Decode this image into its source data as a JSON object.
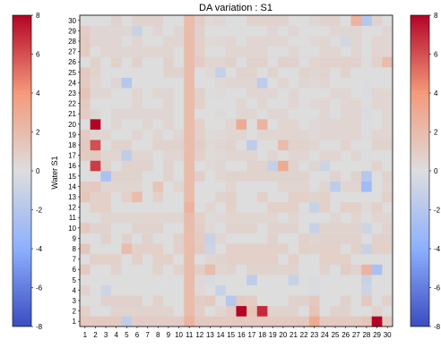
{
  "chart_data": {
    "type": "heatmap",
    "title": "DA variation : S1",
    "xlabel": "",
    "ylabel": "Water S1",
    "x_categories": [
      "1",
      "2",
      "3",
      "4",
      "5",
      "6",
      "7",
      "8",
      "9",
      "10",
      "11",
      "12",
      "13",
      "14",
      "15",
      "16",
      "17",
      "18",
      "19",
      "20",
      "21",
      "22",
      "23",
      "24",
      "25",
      "26",
      "27",
      "28",
      "29",
      "30"
    ],
    "y_categories": [
      "1",
      "2",
      "3",
      "4",
      "5",
      "6",
      "7",
      "8",
      "9",
      "10",
      "11",
      "12",
      "13",
      "14",
      "15",
      "16",
      "17",
      "18",
      "19",
      "20",
      "21",
      "22",
      "23",
      "24",
      "25",
      "26",
      "27",
      "28",
      "29",
      "30"
    ],
    "colorscale": {
      "name": "coolwarm",
      "vmin": -8,
      "vmax": 8,
      "stops": [
        "#3b4cc0",
        "#dddddd",
        "#b40426"
      ],
      "ticks": [
        "-8",
        "-6",
        "-4",
        "-2",
        "0",
        "2",
        "4",
        "6",
        "8"
      ]
    },
    "colorbars": [
      {
        "side": "left"
      },
      {
        "side": "right"
      }
    ],
    "cells": [
      {
        "x": 11,
        "y": 0,
        "value": 2.2,
        "note": "column 11 uniformly ~1.8-2.2 across all rows"
      },
      {
        "x": 1,
        "y": 1,
        "value": 1.2
      },
      {
        "x": 2,
        "y": 1,
        "value": 1.2
      },
      {
        "x": 3,
        "y": 1,
        "value": 1.2
      },
      {
        "x": 4,
        "y": 1,
        "value": 1.2
      },
      {
        "x": 5,
        "y": 1,
        "value": -1.5
      },
      {
        "x": 6,
        "y": 1,
        "value": 1.0
      },
      {
        "x": 7,
        "y": 1,
        "value": 1.0
      },
      {
        "x": 8,
        "y": 1,
        "value": 1.0
      },
      {
        "x": 9,
        "y": 1,
        "value": 1.0
      },
      {
        "x": 10,
        "y": 1,
        "value": 1.0
      },
      {
        "x": 11,
        "y": 1,
        "value": 2.5
      },
      {
        "x": 12,
        "y": 1,
        "value": 1.2
      },
      {
        "x": 13,
        "y": 1,
        "value": 1.2
      },
      {
        "x": 14,
        "y": 1,
        "value": 1.2
      },
      {
        "x": 15,
        "y": 1,
        "value": 1.2
      },
      {
        "x": 16,
        "y": 1,
        "value": 1.2
      },
      {
        "x": 17,
        "y": 1,
        "value": 1.2
      },
      {
        "x": 18,
        "y": 1,
        "value": 1.2
      },
      {
        "x": 19,
        "y": 1,
        "value": 1.2
      },
      {
        "x": 20,
        "y": 1,
        "value": 1.2
      },
      {
        "x": 21,
        "y": 1,
        "value": 1.2
      },
      {
        "x": 22,
        "y": 1,
        "value": 1.2
      },
      {
        "x": 23,
        "y": 1,
        "value": 3.0
      },
      {
        "x": 24,
        "y": 1,
        "value": 1.2
      },
      {
        "x": 25,
        "y": 1,
        "value": 1.2
      },
      {
        "x": 26,
        "y": 1,
        "value": 1.2
      },
      {
        "x": 27,
        "y": 1,
        "value": 1.2
      },
      {
        "x": 28,
        "y": 1,
        "value": 1.5
      },
      {
        "x": 29,
        "y": 1,
        "value": 8.0
      },
      {
        "x": 30,
        "y": 1,
        "value": 1.2
      },
      {
        "x": 1,
        "y": 2,
        "value": 0.8
      },
      {
        "x": 16,
        "y": 2,
        "value": 8.0
      },
      {
        "x": 17,
        "y": 2,
        "value": 1.5
      },
      {
        "x": 18,
        "y": 2,
        "value": 7.0
      },
      {
        "x": 15,
        "y": 2,
        "value": 1.0
      },
      {
        "x": 23,
        "y": 2,
        "value": 1.5
      },
      {
        "x": 15,
        "y": 3,
        "value": -2.0
      },
      {
        "x": 16,
        "y": 3,
        "value": 1.2
      },
      {
        "x": 13,
        "y": 3,
        "value": 1.2
      },
      {
        "x": 17,
        "y": 3,
        "value": 1.0
      },
      {
        "x": 23,
        "y": 3,
        "value": 1.2
      },
      {
        "x": 28,
        "y": 3,
        "value": 1.2
      },
      {
        "x": 3,
        "y": 4,
        "value": -0.8
      },
      {
        "x": 14,
        "y": 4,
        "value": -1.0
      },
      {
        "x": 28,
        "y": 4,
        "value": -0.8
      },
      {
        "x": 17,
        "y": 5,
        "value": -1.5
      },
      {
        "x": 21,
        "y": 5,
        "value": -1.0
      },
      {
        "x": 28,
        "y": 5,
        "value": -1.0
      },
      {
        "x": 13,
        "y": 6,
        "value": 2.0
      },
      {
        "x": 28,
        "y": 6,
        "value": 2.5
      },
      {
        "x": 29,
        "y": 6,
        "value": -2.5
      },
      {
        "x": 26,
        "y": 6,
        "value": 1.0
      },
      {
        "x": 5,
        "y": 8,
        "value": 2.0
      },
      {
        "x": 13,
        "y": 8,
        "value": -0.8
      },
      {
        "x": 28,
        "y": 8,
        "value": -1.0
      },
      {
        "x": 13,
        "y": 9,
        "value": -1.0
      },
      {
        "x": 23,
        "y": 10,
        "value": -1.0
      },
      {
        "x": 28,
        "y": 10,
        "value": -0.8
      },
      {
        "x": 23,
        "y": 12,
        "value": -1.0
      },
      {
        "x": 11,
        "y": 12,
        "value": 2.5
      },
      {
        "x": 6,
        "y": 13,
        "value": 2.0
      },
      {
        "x": 2,
        "y": 14,
        "value": 1.2
      },
      {
        "x": 8,
        "y": 14,
        "value": 1.5
      },
      {
        "x": 25,
        "y": 14,
        "value": -1.5
      },
      {
        "x": 28,
        "y": 14,
        "value": -3.0
      },
      {
        "x": 28,
        "y": 15,
        "value": -2.0
      },
      {
        "x": 3,
        "y": 15,
        "value": -2.5
      },
      {
        "x": 2,
        "y": 16,
        "value": 6.5
      },
      {
        "x": 20,
        "y": 16,
        "value": 3.0
      },
      {
        "x": 19,
        "y": 16,
        "value": -1.2
      },
      {
        "x": 24,
        "y": 16,
        "value": -0.8
      },
      {
        "x": 2,
        "y": 17,
        "value": 1.2
      },
      {
        "x": 5,
        "y": 17,
        "value": -1.5
      },
      {
        "x": 2,
        "y": 18,
        "value": 6.0
      },
      {
        "x": 17,
        "y": 18,
        "value": -1.5
      },
      {
        "x": 20,
        "y": 18,
        "value": 2.0
      },
      {
        "x": 2,
        "y": 20,
        "value": 8.0
      },
      {
        "x": 16,
        "y": 20,
        "value": 3.0
      },
      {
        "x": 18,
        "y": 20,
        "value": 2.5
      },
      {
        "x": 1,
        "y": 23,
        "value": 1.5
      },
      {
        "x": 5,
        "y": 24,
        "value": -2.0
      },
      {
        "x": 18,
        "y": 24,
        "value": -1.5
      },
      {
        "x": 14,
        "y": 25,
        "value": -1.2
      },
      {
        "x": 30,
        "y": 26,
        "value": 2.0
      },
      {
        "x": 26,
        "y": 28,
        "value": -0.6
      },
      {
        "x": 6,
        "y": 29,
        "value": -1.0
      },
      {
        "x": 27,
        "y": 30,
        "value": 2.5
      },
      {
        "x": 28,
        "y": 30,
        "value": -2.0
      }
    ],
    "background_value": 0,
    "row_biases": [
      {
        "y": 1,
        "value": 1.2
      },
      {
        "y": 2,
        "value": 0.6
      },
      {
        "y": 3,
        "value": 0.7
      },
      {
        "y": 6,
        "value": 0.6
      },
      {
        "y": 7,
        "value": 0.8
      },
      {
        "y": 8,
        "value": 0.8
      },
      {
        "y": 9,
        "value": 0.7
      },
      {
        "y": 10,
        "value": 0.6
      },
      {
        "y": 11,
        "value": 0.5
      },
      {
        "y": 12,
        "value": 0.8
      },
      {
        "y": 13,
        "value": 0.8
      },
      {
        "y": 14,
        "value": 0.5
      },
      {
        "y": 15,
        "value": 0.6
      },
      {
        "y": 16,
        "value": 0.6
      },
      {
        "y": 17,
        "value": 0.5
      },
      {
        "y": 18,
        "value": 0.6
      },
      {
        "y": 19,
        "value": 0.5
      },
      {
        "y": 20,
        "value": 0.5
      },
      {
        "y": 21,
        "value": 0.4
      },
      {
        "y": 22,
        "value": 0.5
      },
      {
        "y": 23,
        "value": 0.4
      },
      {
        "y": 24,
        "value": 0.5
      },
      {
        "y": 25,
        "value": 0.6
      },
      {
        "y": 26,
        "value": 0.7
      },
      {
        "y": 27,
        "value": 0.5
      },
      {
        "y": 28,
        "value": 0.5
      },
      {
        "y": 29,
        "value": 0.4
      },
      {
        "y": 30,
        "value": 0.6
      }
    ],
    "column_biases": [
      {
        "x": 11,
        "value": 2.0
      },
      {
        "x": 28,
        "value": -0.6
      },
      {
        "x": 1,
        "value": 0.6
      },
      {
        "x": 12,
        "value": 0.3
      },
      {
        "x": 13,
        "value": -0.3
      },
      {
        "x": 14,
        "value": -0.2
      },
      {
        "x": 23,
        "value": -0.2
      }
    ]
  }
}
